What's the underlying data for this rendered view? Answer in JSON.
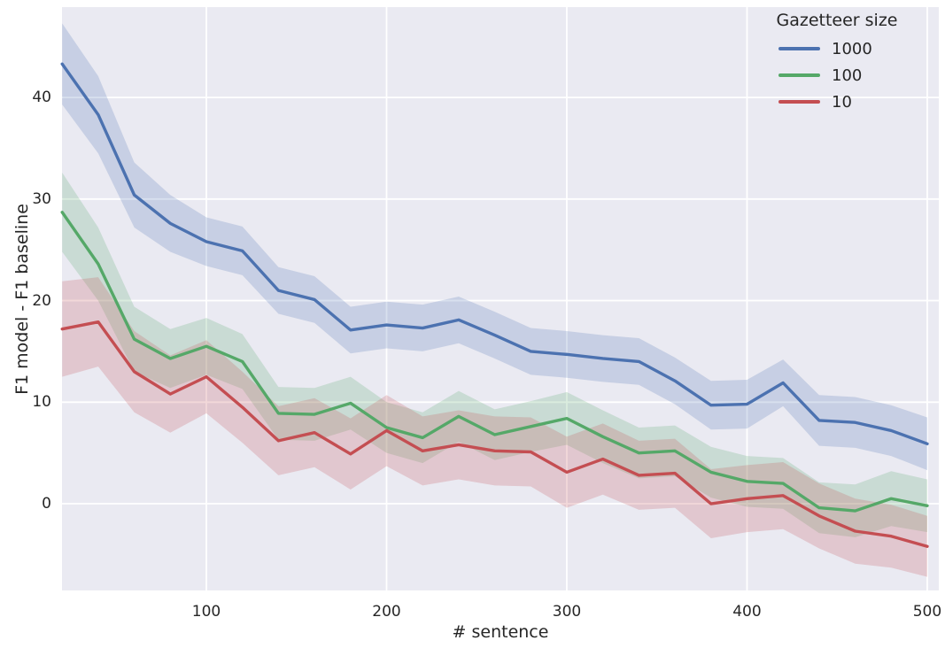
{
  "chart_data": {
    "type": "line",
    "title": "",
    "xlabel": "# sentence",
    "ylabel": "F1 model - F1 baseline",
    "legend_title": "Gazetteer size",
    "legend_position": "upper right",
    "grid": true,
    "plot_background": "#EAEAF2",
    "grid_color": "#FFFFFF",
    "text_color": "#262626",
    "band_opacity": 0.22,
    "xlim": [
      19.9,
      506.4
    ],
    "ylim": [
      -8.54,
      48.9
    ],
    "x_ticks": [
      100,
      200,
      300,
      400,
      500
    ],
    "y_ticks": [
      0,
      10,
      20,
      30,
      40
    ],
    "x": [
      20,
      40,
      60,
      80,
      100,
      120,
      140,
      160,
      180,
      200,
      220,
      240,
      260,
      280,
      300,
      320,
      340,
      360,
      380,
      400,
      420,
      440,
      460,
      480,
      500
    ],
    "series": [
      {
        "name": "1000",
        "color": "#4C72B0",
        "values": [
          43.3,
          38.3,
          30.4,
          27.6,
          25.8,
          24.9,
          21.0,
          20.1,
          17.1,
          17.6,
          17.3,
          18.1,
          16.6,
          15.0,
          14.7,
          14.3,
          14.0,
          12.1,
          9.7,
          9.8,
          11.9,
          8.2,
          8.0,
          7.2,
          5.9
        ],
        "band_halfwidth": [
          4.0,
          3.8,
          3.2,
          2.8,
          2.4,
          2.4,
          2.3,
          2.3,
          2.3,
          2.3,
          2.3,
          2.3,
          2.3,
          2.3,
          2.3,
          2.3,
          2.3,
          2.3,
          2.4,
          2.4,
          2.3,
          2.5,
          2.5,
          2.5,
          2.6
        ]
      },
      {
        "name": "100",
        "color": "#55A868",
        "values": [
          28.7,
          23.6,
          16.2,
          14.3,
          15.5,
          14.0,
          8.9,
          8.8,
          9.9,
          7.5,
          6.5,
          8.6,
          6.8,
          7.6,
          8.4,
          6.6,
          5.0,
          5.2,
          3.1,
          2.2,
          2.0,
          -0.4,
          -0.7,
          0.5,
          -0.2
        ],
        "band_halfwidth": [
          3.9,
          3.6,
          3.2,
          2.9,
          2.8,
          2.7,
          2.6,
          2.6,
          2.6,
          2.5,
          2.5,
          2.5,
          2.5,
          2.5,
          2.6,
          2.6,
          2.5,
          2.5,
          2.5,
          2.5,
          2.5,
          2.5,
          2.6,
          2.7,
          2.6
        ]
      },
      {
        "name": "10",
        "color": "#C44E52",
        "values": [
          17.2,
          17.9,
          13.0,
          10.8,
          12.5,
          9.5,
          6.2,
          7.0,
          4.9,
          7.2,
          5.2,
          5.8,
          5.2,
          5.1,
          3.1,
          4.4,
          2.8,
          3.0,
          0.0,
          0.5,
          0.8,
          -1.2,
          -2.7,
          -3.2,
          -4.2
        ],
        "band_halfwidth": [
          4.7,
          4.4,
          4.0,
          3.8,
          3.6,
          3.5,
          3.4,
          3.4,
          3.5,
          3.5,
          3.4,
          3.4,
          3.4,
          3.4,
          3.5,
          3.5,
          3.4,
          3.4,
          3.4,
          3.3,
          3.3,
          3.2,
          3.2,
          3.1,
          3.0
        ]
      }
    ]
  }
}
